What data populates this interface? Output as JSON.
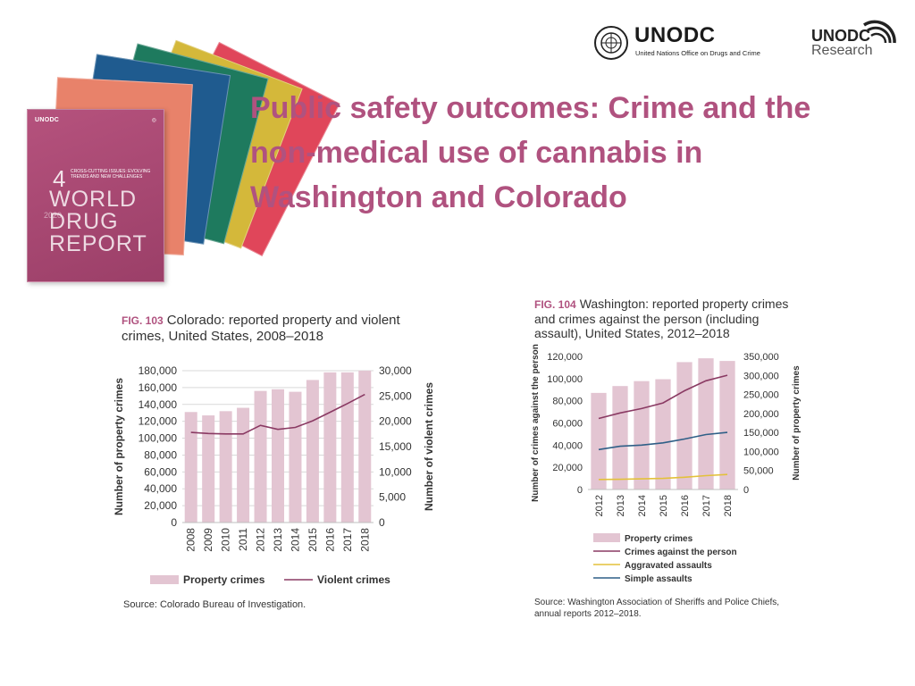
{
  "slide": {
    "title": "Public safety outcomes: Crime and the non-medical use of cannabis in Washington and Colorado"
  },
  "logos": {
    "unodc_name": "UNODC",
    "unodc_tagline": "United Nations Office on Drugs and Crime",
    "research_name": "UNODC",
    "research_sub": "Research"
  },
  "report_cover": {
    "publisher": "UNODC",
    "number": "4",
    "subtitle": "CROSS-CUTTING ISSUES: EVOLVING TRENDS AND NEW CHALLENGES",
    "title_lines": [
      "WORLD",
      "DRUG",
      "REPORT"
    ],
    "year": "2020",
    "colors": [
      "#e0465a",
      "#d4b83a",
      "#1e7a5e",
      "#1f5b8f",
      "#e8826a",
      "#b5527d"
    ]
  },
  "figure103": {
    "label": "FIG. 103",
    "text": "Colorado: reported property and violent crimes, United States, 2008–2018",
    "source": "Source: Colorado Bureau of Investigation."
  },
  "figure104": {
    "label": "FIG. 104",
    "text": "Washington: reported property crimes and crimes against the person (including assault), United States, 2012–2018",
    "source": "Source: Washington Association of Sheriffs and Police Chiefs, annual reports 2012–2018."
  },
  "chart_data": [
    {
      "type": "bar",
      "id": "colorado",
      "categories": [
        "2008",
        "2009",
        "2010",
        "2011",
        "2012",
        "2013",
        "2014",
        "2015",
        "2016",
        "2017",
        "2018"
      ],
      "series": [
        {
          "name": "Property crimes",
          "kind": "bar",
          "axis": "left",
          "color": "#e3c5d2",
          "values": [
            131000,
            127000,
            132000,
            136000,
            156000,
            158000,
            155000,
            169000,
            178000,
            178000,
            180000
          ]
        },
        {
          "name": "Violent crimes",
          "kind": "line",
          "axis": "right",
          "color": "#8a3a63",
          "values": [
            17800,
            17600,
            17500,
            17500,
            19200,
            18400,
            18800,
            20100,
            21800,
            23500,
            25300
          ]
        }
      ],
      "ylabel": "Number of property crimes",
      "y2label": "Number of violent crimes",
      "ylim": [
        0,
        180000
      ],
      "y2lim": [
        0,
        30000
      ],
      "yticks": [
        "0",
        "20,000",
        "40,000",
        "60,000",
        "80,000",
        "100,000",
        "120,000",
        "140,000",
        "160,000",
        "180,000"
      ],
      "y2ticks": [
        "0",
        "5,000",
        "10,000",
        "15,000",
        "20,000",
        "25,000",
        "30,000"
      ],
      "grid": true,
      "legend": "bottom"
    },
    {
      "type": "bar",
      "id": "washington",
      "categories": [
        "2012",
        "2013",
        "2014",
        "2015",
        "2016",
        "2017",
        "2018"
      ],
      "series": [
        {
          "name": "Property crimes",
          "kind": "bar",
          "axis": "right",
          "color": "#e3c5d2",
          "values": [
            254000,
            272000,
            285000,
            290000,
            335000,
            345000,
            338000
          ]
        },
        {
          "name": "Crimes against the person",
          "kind": "line",
          "axis": "left",
          "color": "#8a3a63",
          "values": [
            64000,
            69000,
            73000,
            78000,
            89000,
            98000,
            103000
          ]
        },
        {
          "name": "Aggravated assaults",
          "kind": "line",
          "axis": "left",
          "color": "#e3c13a",
          "values": [
            9000,
            9200,
            9600,
            10000,
            11000,
            12500,
            13500
          ]
        },
        {
          "name": "Simple assaults",
          "kind": "line",
          "axis": "left",
          "color": "#2f5f87",
          "values": [
            36000,
            39000,
            40000,
            42000,
            45500,
            49500,
            51500
          ]
        }
      ],
      "ylabel": "Number of crimes against the person",
      "y2label": "Number of property crimes",
      "ylim": [
        0,
        120000
      ],
      "y2lim": [
        0,
        350000
      ],
      "yticks": [
        "0",
        "20,000",
        "40,000",
        "60,000",
        "80,000",
        "100,000",
        "120,000"
      ],
      "y2ticks": [
        "0",
        "50,000",
        "100,000",
        "150,000",
        "200,000",
        "250,000",
        "300,000",
        "350,000"
      ],
      "grid": false,
      "legend": "bottom"
    }
  ]
}
